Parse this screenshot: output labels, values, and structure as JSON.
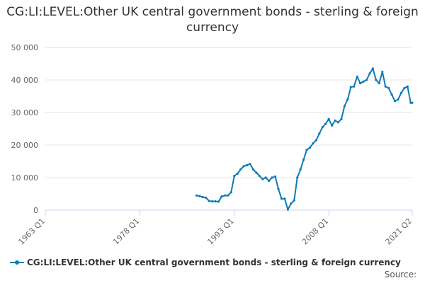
{
  "chart_data": {
    "type": "line",
    "title": "CG:LI:LEVEL:Other UK central government bonds - sterling & foreign currency",
    "ylim": [
      0,
      50000
    ],
    "yticks": [
      "0",
      "10 000",
      "20 000",
      "30 000",
      "40 000",
      "50 000"
    ],
    "ytick_values": [
      0,
      10000,
      20000,
      30000,
      40000,
      50000
    ],
    "xticks": [
      "1963 Q1",
      "1978 Q1",
      "1993 Q1",
      "2008 Q1",
      "2021 Q2"
    ],
    "xtick_values": [
      1963.0,
      1978.0,
      1993.0,
      2008.0,
      2021.25
    ],
    "xlim": [
      1963.0,
      2021.25
    ],
    "grid": true,
    "legend_position": "bottom",
    "color": "#0d7bb6",
    "series": [
      {
        "name": "CG:LI:LEVEL:Other UK central government bonds - sterling & foreign currency",
        "x": [
          1987.0,
          1987.5,
          1988.0,
          1988.5,
          1989.0,
          1989.5,
          1990.0,
          1990.5,
          1991.0,
          1991.5,
          1992.0,
          1992.5,
          1993.0,
          1993.5,
          1994.0,
          1994.5,
          1995.0,
          1995.5,
          1996.0,
          1996.5,
          1997.0,
          1997.5,
          1998.0,
          1998.5,
          1999.0,
          1999.5,
          2000.0,
          2000.5,
          2001.0,
          2001.5,
          2002.0,
          2002.5,
          2003.0,
          2003.5,
          2004.0,
          2004.5,
          2005.0,
          2005.5,
          2006.0,
          2006.5,
          2007.0,
          2007.5,
          2008.0,
          2008.5,
          2009.0,
          2009.5,
          2010.0,
          2010.5,
          2011.0,
          2011.5,
          2012.0,
          2012.5,
          2013.0,
          2013.5,
          2014.0,
          2014.5,
          2015.0,
          2015.5,
          2016.0,
          2016.5,
          2017.0,
          2017.5,
          2018.0,
          2018.5,
          2019.0,
          2019.5,
          2020.0,
          2020.5,
          2021.0,
          2021.25
        ],
        "y": [
          4500,
          4300,
          4000,
          3800,
          2800,
          2700,
          2700,
          2600,
          4200,
          4500,
          4500,
          5500,
          10500,
          11200,
          12500,
          13500,
          13800,
          14200,
          12500,
          11500,
          10500,
          9500,
          10000,
          9000,
          10000,
          10300,
          6500,
          3500,
          3500,
          200,
          2000,
          3000,
          10000,
          12500,
          15500,
          18500,
          19200,
          20500,
          21500,
          23500,
          25500,
          26500,
          28000,
          26000,
          27500,
          27000,
          28000,
          32000,
          34000,
          37800,
          38000,
          41000,
          39000,
          39500,
          40000,
          42000,
          43500,
          40000,
          39000,
          42500,
          38000,
          37500,
          35500,
          33500,
          34000,
          36000,
          37500,
          38000,
          33000,
          33000
        ]
      }
    ]
  },
  "legend": {
    "label": "CG:LI:LEVEL:Other UK central government bonds - sterling & foreign currency"
  },
  "source": {
    "label": "Source:"
  }
}
